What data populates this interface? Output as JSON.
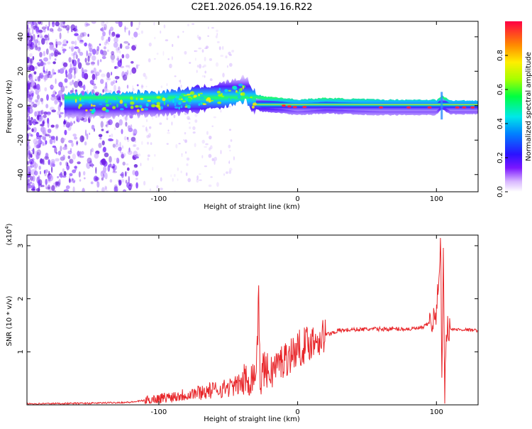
{
  "title": "C2E1.2026.054.19.16.R22",
  "chart_data": [
    {
      "type": "heatmap",
      "name": "spectrogram",
      "xlabel": "Height of straight line (km)",
      "ylabel": "Frequency (Hz)",
      "xlim": [
        -195,
        130
      ],
      "ylim": [
        -50,
        49
      ],
      "x_ticks": [
        -100,
        0,
        100
      ],
      "y_ticks": [
        -40,
        -20,
        0,
        20,
        40
      ],
      "colorbar": {
        "label": "Normalized spectral amplitude",
        "range": [
          0.0,
          1.0
        ],
        "ticks": [
          0.0,
          0.2,
          0.4,
          0.6,
          0.8
        ]
      },
      "trace_center_hz": [
        {
          "x": -165,
          "y": 0
        },
        {
          "x": -140,
          "y": 0
        },
        {
          "x": -120,
          "y": 1
        },
        {
          "x": -100,
          "y": 1
        },
        {
          "x": -80,
          "y": 3
        },
        {
          "x": -60,
          "y": 5
        },
        {
          "x": -45,
          "y": 8
        },
        {
          "x": -37,
          "y": 10
        },
        {
          "x": -33,
          "y": 3
        },
        {
          "x": -25,
          "y": 1
        },
        {
          "x": -10,
          "y": 0
        },
        {
          "x": 0,
          "y": -1
        },
        {
          "x": 20,
          "y": 0
        },
        {
          "x": 60,
          "y": -1
        },
        {
          "x": 100,
          "y": -1
        },
        {
          "x": 104,
          "y": 2
        },
        {
          "x": 110,
          "y": -1
        },
        {
          "x": 130,
          "y": -1
        }
      ]
    },
    {
      "type": "line",
      "name": "snr",
      "xlabel": "Height of straight line (km)",
      "ylabel": "SNR (10 * v/v)",
      "y_multiplier": "(x10",
      "y_multiplier_exp": "4",
      "y_multiplier_close": ")",
      "xlim": [
        -195,
        130
      ],
      "ylim": [
        0,
        3.2
      ],
      "x_ticks": [
        -100,
        0,
        100
      ],
      "y_ticks": [
        1,
        2,
        3
      ],
      "color": "#e8262a",
      "series": [
        {
          "name": "SNR",
          "x": [
            -195,
            -150,
            -120,
            -100,
            -80,
            -60,
            -45,
            -35,
            -30,
            -28,
            -27,
            -25,
            -20,
            -15,
            -10,
            -5,
            0,
            10,
            20,
            30,
            40,
            60,
            80,
            90,
            95,
            100,
            103,
            104,
            105,
            106,
            107,
            108,
            110,
            120,
            130
          ],
          "y": [
            0.02,
            0.03,
            0.05,
            0.12,
            0.2,
            0.28,
            0.35,
            0.5,
            0.6,
            1.95,
            0.4,
            0.7,
            0.6,
            0.75,
            0.85,
            0.95,
            1.05,
            1.2,
            1.32,
            1.4,
            1.42,
            1.43,
            1.43,
            1.45,
            1.55,
            1.65,
            3.15,
            0.3,
            2.9,
            0.25,
            1.42,
            1.45,
            1.42,
            1.42,
            1.4
          ]
        }
      ]
    }
  ]
}
